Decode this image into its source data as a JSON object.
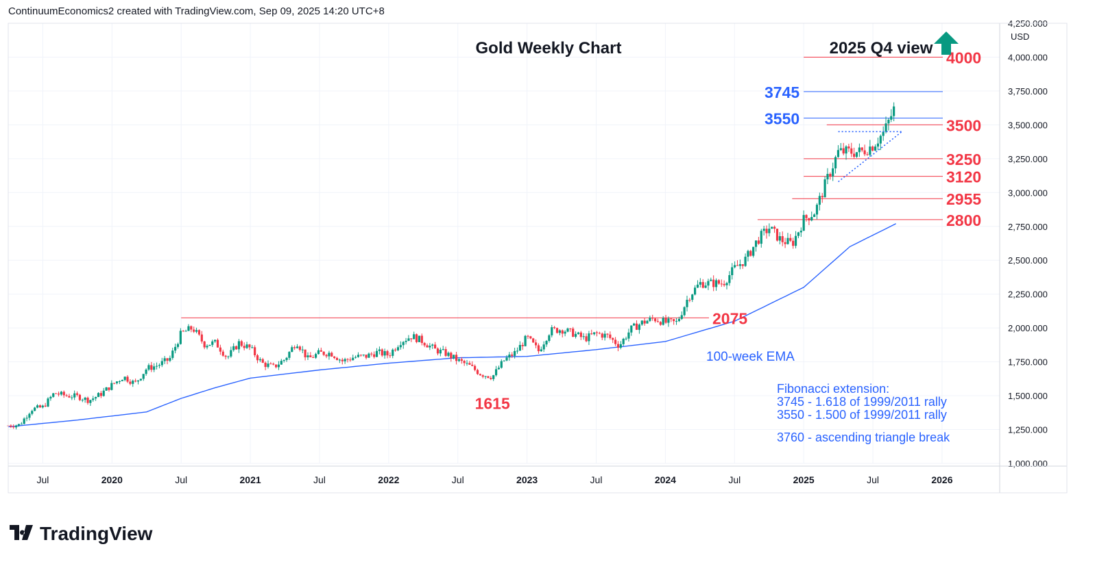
{
  "header": "ContinuumEconomics2 created with TradingView.com, Sep 09, 2025 14:20 UTC+8",
  "logo_text": "TradingView",
  "colors": {
    "up": "#089981",
    "down": "#f23645",
    "ema": "#2962ff",
    "red_label": "#f23645",
    "blue_label": "#2962ff",
    "grid": "#f0f3fa",
    "text": "#131722",
    "arrow": "#089981"
  },
  "chart_data": {
    "type": "candlestick",
    "title": "Gold Weekly Chart",
    "subtitle": "2025 Q4 view",
    "currency": "USD",
    "ylim": [
      1000,
      4250
    ],
    "y_ticks": [
      "1,000.000",
      "1,250.000",
      "1,500.000",
      "1,750.000",
      "2,000.000",
      "2,250.000",
      "2,500.000",
      "2,750.000",
      "3,000.000",
      "3,250.000",
      "3,500.000",
      "3,750.000",
      "4,000.000",
      "4,250.000"
    ],
    "y_tick_values": [
      1000,
      1250,
      1500,
      1750,
      2000,
      2250,
      2500,
      2750,
      3000,
      3250,
      3500,
      3750,
      4000,
      4250
    ],
    "x_ticks": [
      "Jul",
      "2020",
      "Jul",
      "2021",
      "Jul",
      "2022",
      "Jul",
      "2023",
      "Jul",
      "2024",
      "Jul",
      "2025",
      "Jul",
      "2026"
    ],
    "x_tick_dates": [
      "2019-07",
      "2020-01",
      "2020-07",
      "2021-01",
      "2021-07",
      "2022-01",
      "2022-07",
      "2023-01",
      "2023-07",
      "2024-01",
      "2024-07",
      "2025-01",
      "2025-07",
      "2026-01"
    ],
    "x_range": [
      "2019-04",
      "2026-06"
    ],
    "price_path": [
      [
        "2019-04",
        1280
      ],
      [
        "2019-05",
        1285
      ],
      [
        "2019-06",
        1400
      ],
      [
        "2019-07",
        1415
      ],
      [
        "2019-08",
        1520
      ],
      [
        "2019-09",
        1500
      ],
      [
        "2019-10",
        1495
      ],
      [
        "2019-11",
        1465
      ],
      [
        "2019-12",
        1510
      ],
      [
        "2020-01",
        1580
      ],
      [
        "2020-02",
        1640
      ],
      [
        "2020-03",
        1590
      ],
      [
        "2020-04",
        1700
      ],
      [
        "2020-05",
        1725
      ],
      [
        "2020-06",
        1770
      ],
      [
        "2020-07",
        1960
      ],
      [
        "2020-08",
        2000
      ],
      [
        "2020-09",
        1880
      ],
      [
        "2020-10",
        1890
      ],
      [
        "2020-11",
        1780
      ],
      [
        "2020-12",
        1890
      ],
      [
        "2021-01",
        1850
      ],
      [
        "2021-02",
        1740
      ],
      [
        "2021-03",
        1710
      ],
      [
        "2021-04",
        1770
      ],
      [
        "2021-05",
        1900
      ],
      [
        "2021-06",
        1770
      ],
      [
        "2021-07",
        1815
      ],
      [
        "2021-08",
        1815
      ],
      [
        "2021-09",
        1755
      ],
      [
        "2021-10",
        1785
      ],
      [
        "2021-11",
        1790
      ],
      [
        "2021-12",
        1820
      ],
      [
        "2022-01",
        1800
      ],
      [
        "2022-02",
        1900
      ],
      [
        "2022-03",
        1940
      ],
      [
        "2022-04",
        1900
      ],
      [
        "2022-05",
        1840
      ],
      [
        "2022-06",
        1810
      ],
      [
        "2022-07",
        1760
      ],
      [
        "2022-08",
        1720
      ],
      [
        "2022-09",
        1660
      ],
      [
        "2022-10",
        1640
      ],
      [
        "2022-11",
        1760
      ],
      [
        "2022-12",
        1820
      ],
      [
        "2023-01",
        1930
      ],
      [
        "2023-02",
        1830
      ],
      [
        "2023-03",
        1980
      ],
      [
        "2023-04",
        1990
      ],
      [
        "2023-05",
        1960
      ],
      [
        "2023-06",
        1920
      ],
      [
        "2023-07",
        1960
      ],
      [
        "2023-08",
        1940
      ],
      [
        "2023-09",
        1870
      ],
      [
        "2023-10",
        1990
      ],
      [
        "2023-11",
        2040
      ],
      [
        "2023-12",
        2070
      ],
      [
        "2024-01",
        2040
      ],
      [
        "2024-02",
        2040
      ],
      [
        "2024-03",
        2230
      ],
      [
        "2024-04",
        2330
      ],
      [
        "2024-05",
        2330
      ],
      [
        "2024-06",
        2330
      ],
      [
        "2024-07",
        2440
      ],
      [
        "2024-08",
        2510
      ],
      [
        "2024-09",
        2650
      ],
      [
        "2024-10",
        2740
      ],
      [
        "2024-11",
        2650
      ],
      [
        "2024-12",
        2620
      ],
      [
        "2025-01",
        2800
      ],
      [
        "2025-02",
        2860
      ],
      [
        "2025-03",
        3090
      ],
      [
        "2025-04",
        3300
      ],
      [
        "2025-05",
        3300
      ],
      [
        "2025-06",
        3300
      ],
      [
        "2025-07",
        3350
      ],
      [
        "2025-08",
        3450
      ],
      [
        "2025-09",
        3650
      ]
    ],
    "ema_path": [
      [
        "2019-04",
        1270
      ],
      [
        "2019-10",
        1320
      ],
      [
        "2020-04",
        1380
      ],
      [
        "2020-07",
        1480
      ],
      [
        "2020-10",
        1560
      ],
      [
        "2021-01",
        1630
      ],
      [
        "2021-07",
        1690
      ],
      [
        "2022-01",
        1740
      ],
      [
        "2022-07",
        1780
      ],
      [
        "2023-01",
        1790
      ],
      [
        "2023-07",
        1840
      ],
      [
        "2024-01",
        1900
      ],
      [
        "2024-07",
        2050
      ],
      [
        "2025-01",
        2300
      ],
      [
        "2025-05",
        2600
      ],
      [
        "2025-09",
        2770
      ]
    ],
    "levels": [
      {
        "value": 4000,
        "label": "4000",
        "color": "red",
        "from": "2025-01"
      },
      {
        "value": 3745,
        "label": "3745",
        "color": "blue",
        "from": "2025-01"
      },
      {
        "value": 3550,
        "label": "3550",
        "color": "blue",
        "from": "2025-01"
      },
      {
        "value": 3500,
        "label": "3500",
        "color": "red",
        "from": "2025-03"
      },
      {
        "value": 3250,
        "label": "3250",
        "color": "red",
        "from": "2025-01"
      },
      {
        "value": 3120,
        "label": "3120",
        "color": "red",
        "from": "2025-01"
      },
      {
        "value": 2955,
        "label": "2955",
        "color": "red",
        "from": "2024-12"
      },
      {
        "value": 2800,
        "label": "2800",
        "color": "red",
        "from": "2024-09"
      },
      {
        "value": 2075,
        "label": "2075",
        "color": "red",
        "from": "2020-07"
      }
    ],
    "annotations": {
      "low_label": "1615",
      "ema_label": "100-week EMA",
      "fib_lines": [
        "Fibonacci extension:",
        "3745 - 1.618 of 1999/2011 rally",
        "3550 - 1.500 of 1999/2011 rally",
        "",
        "3760 - ascending triangle break"
      ]
    }
  }
}
